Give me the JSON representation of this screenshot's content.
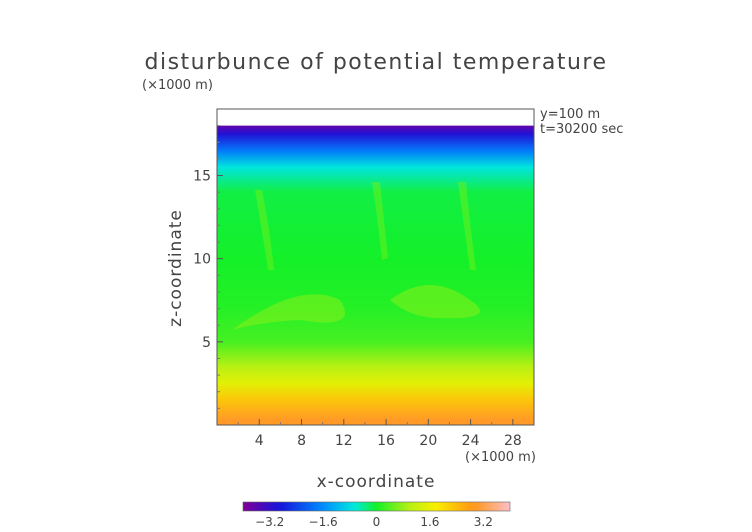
{
  "chart_data": {
    "type": "heatmap",
    "title": "disturbunce of potential temperature",
    "xlabel": "x-coordinate",
    "ylabel": "z-coordinate",
    "x_unit": "(×1000 m)",
    "y_unit": "(×1000 m)",
    "annotations": [
      "y=100 m",
      "t=30200 sec"
    ],
    "xlim": [
      0,
      30
    ],
    "ylim": [
      0,
      19
    ],
    "x_ticks": [
      4,
      8,
      12,
      16,
      20,
      24,
      28
    ],
    "y_ticks": [
      5,
      10,
      15
    ],
    "colorbar": {
      "range": [
        -4.0,
        4.0
      ],
      "tick_values": [
        -3.2,
        -1.6,
        0,
        1.6,
        3.2
      ],
      "tick_labels": [
        "−3.2",
        "−1.6",
        "0",
        "1.6",
        "3.2"
      ]
    },
    "field_profile_by_height": [
      {
        "z": 0.3,
        "value": 3.0
      },
      {
        "z": 1.5,
        "value": 2.3
      },
      {
        "z": 2.5,
        "value": 1.5
      },
      {
        "z": 3.5,
        "value": 1.0
      },
      {
        "z": 5.0,
        "value": 0.3
      },
      {
        "z": 7.0,
        "value": 0.1
      },
      {
        "z": 10.0,
        "value": 0.0
      },
      {
        "z": 14.0,
        "value": -0.1
      },
      {
        "z": 15.5,
        "value": -0.7
      },
      {
        "z": 16.5,
        "value": -1.8
      },
      {
        "z": 17.5,
        "value": -3.0
      },
      {
        "z": 18.0,
        "value": -3.7
      }
    ],
    "data_top_z": 18.0,
    "grid": false
  }
}
